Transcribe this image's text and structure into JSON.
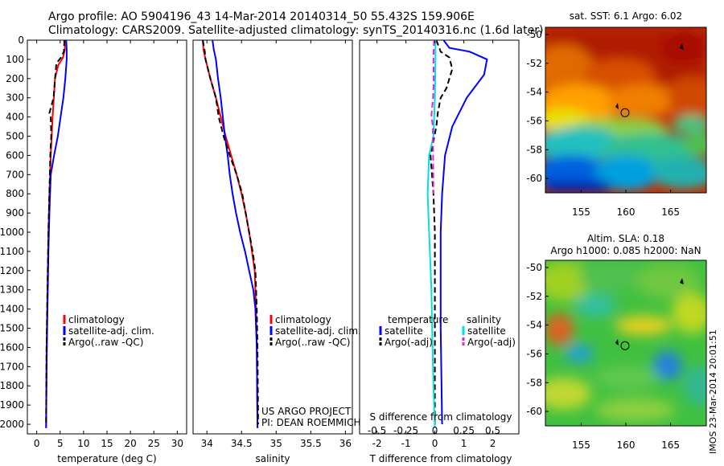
{
  "header": {
    "line1": "Argo profile: AO 5904196_43 14-Mar-2014 20140314_50 55.432S 159.906E",
    "line2": "Climatology: CARS2009. Satellite-adjusted climatology: synTS_20140316.nc (1.6d later)"
  },
  "colors": {
    "climatology": "#ff0000",
    "satellite": "#0000ff",
    "argo": "#000000",
    "sat_salinity": "#00e0e0",
    "argo_salinity": "#e020e0"
  },
  "chart_data": [
    {
      "type": "line",
      "id": "temperature",
      "xlabel": "temperature (deg C)",
      "ylabel": "",
      "xlim": [
        -2,
        32
      ],
      "ylim": [
        2050,
        0
      ],
      "xticks": [
        0,
        5,
        10,
        15,
        20,
        25,
        30
      ],
      "yticks": [
        0,
        100,
        200,
        300,
        400,
        500,
        600,
        700,
        800,
        900,
        1000,
        1100,
        1200,
        1300,
        1400,
        1500,
        1600,
        1700,
        1800,
        1900,
        2000
      ],
      "legend": [
        "climatology",
        "satellite-adj. clim.",
        "Argo(..raw -QC)"
      ],
      "series": [
        {
          "name": "climatology",
          "color": "#ff0000",
          "dash": "",
          "points": [
            [
              6.0,
              0
            ],
            [
              6.0,
              50
            ],
            [
              5.6,
              90
            ],
            [
              4.6,
              130
            ],
            [
              3.9,
              200
            ],
            [
              3.4,
              400
            ],
            [
              3.0,
              600
            ],
            [
              2.7,
              800
            ],
            [
              2.5,
              1000
            ],
            [
              2.3,
              1300
            ],
            [
              2.1,
              1600
            ],
            [
              2.0,
              2020
            ]
          ]
        },
        {
          "name": "satellite-adj. clim.",
          "color": "#0000ff",
          "dash": "",
          "points": [
            [
              6.3,
              0
            ],
            [
              6.4,
              50
            ],
            [
              6.4,
              100
            ],
            [
              6.1,
              200
            ],
            [
              5.7,
              300
            ],
            [
              5.1,
              400
            ],
            [
              4.5,
              500
            ],
            [
              3.7,
              600
            ],
            [
              3.0,
              700
            ],
            [
              2.7,
              900
            ],
            [
              2.5,
              1100
            ],
            [
              2.3,
              1400
            ],
            [
              2.1,
              1700
            ],
            [
              2.0,
              2020
            ]
          ]
        },
        {
          "name": "Argo(..raw -QC)",
          "color": "#000000",
          "dash": "7,4",
          "points": [
            [
              5.9,
              0
            ],
            [
              5.8,
              60
            ],
            [
              5.2,
              90
            ],
            [
              4.2,
              120
            ],
            [
              3.9,
              200
            ],
            [
              3.6,
              300
            ],
            [
              2.7,
              380
            ],
            [
              3.0,
              400
            ],
            [
              3.1,
              500
            ],
            [
              2.9,
              600
            ],
            [
              2.7,
              800
            ],
            [
              2.5,
              1000
            ],
            [
              2.3,
              1300
            ],
            [
              2.1,
              1600
            ],
            [
              2.0,
              2000
            ]
          ]
        }
      ]
    },
    {
      "type": "line",
      "id": "salinity",
      "xlabel": "salinity",
      "ylabel": "",
      "xlim": [
        33.8,
        36.1
      ],
      "ylim": [
        2050,
        0
      ],
      "xticks": [
        34,
        34.5,
        35,
        35.5,
        36
      ],
      "xticklabels": [
        "34",
        "34.5",
        "35",
        "35.5",
        "36"
      ],
      "legend": [
        "climatology",
        "satellite-adj. clim.",
        "Argo(..raw -QC)"
      ],
      "series": [
        {
          "name": "climatology",
          "color": "#ff0000",
          "dash": "",
          "points": [
            [
              33.94,
              0
            ],
            [
              33.95,
              50
            ],
            [
              33.98,
              100
            ],
            [
              34.05,
              200
            ],
            [
              34.13,
              300
            ],
            [
              34.2,
              400
            ],
            [
              34.27,
              500
            ],
            [
              34.35,
              600
            ],
            [
              34.43,
              700
            ],
            [
              34.5,
              800
            ],
            [
              34.56,
              900
            ],
            [
              34.61,
              1000
            ],
            [
              34.65,
              1100
            ],
            [
              34.69,
              1200
            ],
            [
              34.71,
              1400
            ],
            [
              34.72,
              1600
            ],
            [
              34.73,
              2020
            ]
          ]
        },
        {
          "name": "satellite-adj. clim.",
          "color": "#0000ff",
          "dash": "",
          "points": [
            [
              34.08,
              0
            ],
            [
              34.1,
              50
            ],
            [
              34.13,
              100
            ],
            [
              34.16,
              200
            ],
            [
              34.2,
              300
            ],
            [
              34.23,
              400
            ],
            [
              34.26,
              500
            ],
            [
              34.3,
              600
            ],
            [
              34.33,
              700
            ],
            [
              34.37,
              800
            ],
            [
              34.42,
              900
            ],
            [
              34.48,
              1000
            ],
            [
              34.55,
              1100
            ],
            [
              34.61,
              1200
            ],
            [
              34.67,
              1300
            ],
            [
              34.7,
              1400
            ],
            [
              34.72,
              1600
            ],
            [
              34.73,
              2020
            ]
          ]
        },
        {
          "name": "Argo(..raw -QC)",
          "color": "#000000",
          "dash": "7,4",
          "points": [
            [
              33.94,
              0
            ],
            [
              33.97,
              60
            ],
            [
              33.98,
              100
            ],
            [
              34.05,
              200
            ],
            [
              34.13,
              300
            ],
            [
              34.17,
              400
            ],
            [
              34.24,
              500
            ],
            [
              34.33,
              600
            ],
            [
              34.43,
              700
            ],
            [
              34.51,
              800
            ],
            [
              34.56,
              900
            ],
            [
              34.61,
              1000
            ],
            [
              34.66,
              1100
            ],
            [
              34.7,
              1200
            ],
            [
              34.72,
              1400
            ],
            [
              34.73,
              1600
            ],
            [
              34.74,
              2000
            ]
          ]
        }
      ],
      "annotations": [
        "US ARGO PROJECT",
        "PI: DEAN ROEMMICH"
      ]
    },
    {
      "type": "line",
      "id": "difference",
      "xlabel": "T difference from climatology",
      "xlabel2": "S difference from climatology",
      "xlim": [
        -2.6,
        2.9
      ],
      "ylim": [
        2050,
        0
      ],
      "xticks": [
        -2,
        -1,
        0,
        1,
        2
      ],
      "xticks2": [
        -0.5,
        -0.25,
        0,
        0.25,
        0.5
      ],
      "xticklabels2": [
        "-0.5",
        "-0.25",
        "0",
        "0.25",
        "0.5"
      ],
      "legend_headers": [
        "temperature",
        "salinity"
      ],
      "legend": [
        "satellite",
        "Argo(-adj)",
        "satellite",
        "Argo(-adj)"
      ],
      "series": [
        {
          "name": "satellite",
          "color": "#0000ff",
          "dash": "",
          "points": [
            [
              0.3,
              0
            ],
            [
              0.5,
              40
            ],
            [
              1.2,
              60
            ],
            [
              1.8,
              100
            ],
            [
              1.7,
              180
            ],
            [
              1.1,
              300
            ],
            [
              0.6,
              450
            ],
            [
              0.35,
              600
            ],
            [
              0.3,
              700
            ],
            [
              0.25,
              800
            ],
            [
              0.2,
              1000
            ],
            [
              0.2,
              1500
            ],
            [
              0.25,
              2000
            ]
          ]
        },
        {
          "name": "Argo(-adj)",
          "color": "#000000",
          "dash": "7,4",
          "points": [
            [
              0.05,
              0
            ],
            [
              0.2,
              60
            ],
            [
              0.5,
              90
            ],
            [
              0.6,
              150
            ],
            [
              0.4,
              250
            ],
            [
              0.2,
              300
            ],
            [
              0.1,
              380
            ],
            [
              0.05,
              450
            ],
            [
              -0.15,
              600
            ],
            [
              -0.05,
              800
            ],
            [
              0,
              1000
            ],
            [
              0,
              1500
            ],
            [
              0,
              2000
            ]
          ]
        },
        {
          "name": "satellite",
          "color": "#00e0e0",
          "dash": "",
          "points": [
            [
              0.02,
              0
            ],
            [
              0.02,
              100
            ],
            [
              0.01,
              200
            ],
            [
              0.0,
              300
            ],
            [
              -0.05,
              500
            ],
            [
              -0.2,
              600
            ],
            [
              -0.25,
              800
            ],
            [
              -0.2,
              1000
            ],
            [
              -0.12,
              1300
            ],
            [
              -0.08,
              1600
            ],
            [
              -0.05,
              1800
            ],
            [
              0.0,
              2020
            ]
          ]
        },
        {
          "name": "Argo(-adj)",
          "color": "#e020e0",
          "dash": "7,4",
          "points": [
            [
              -0.03,
              0
            ],
            [
              -0.05,
              100
            ],
            [
              -0.04,
              200
            ],
            [
              -0.06,
              300
            ],
            [
              -0.12,
              390
            ],
            [
              -0.07,
              450
            ],
            [
              -0.06,
              600
            ],
            [
              -0.05,
              800
            ]
          ]
        }
      ]
    },
    {
      "type": "heatmap",
      "id": "sst-map",
      "title": "sat. SST: 6.1 Argo: 6.02",
      "xlim": [
        151,
        169
      ],
      "ylim": [
        -61,
        -49.5
      ],
      "xticks": [
        155,
        160,
        165
      ],
      "yticks": [
        -50,
        -52,
        -54,
        -56,
        -58,
        -60
      ],
      "marker": [
        159.906,
        -55.432
      ]
    },
    {
      "type": "heatmap",
      "id": "sla-map",
      "title": "Altim. SLA: 0.18",
      "subtitle": "Argo h1000: 0.085 h2000: NaN",
      "xlim": [
        151,
        169
      ],
      "ylim": [
        -61,
        -49.5
      ],
      "xticks": [
        155,
        160,
        165
      ],
      "yticks": [
        -50,
        -52,
        -54,
        -56,
        -58,
        -60
      ],
      "marker": [
        159.906,
        -55.432
      ]
    }
  ],
  "watermark": "IMOS 23-Mar-2014 20:01:51"
}
